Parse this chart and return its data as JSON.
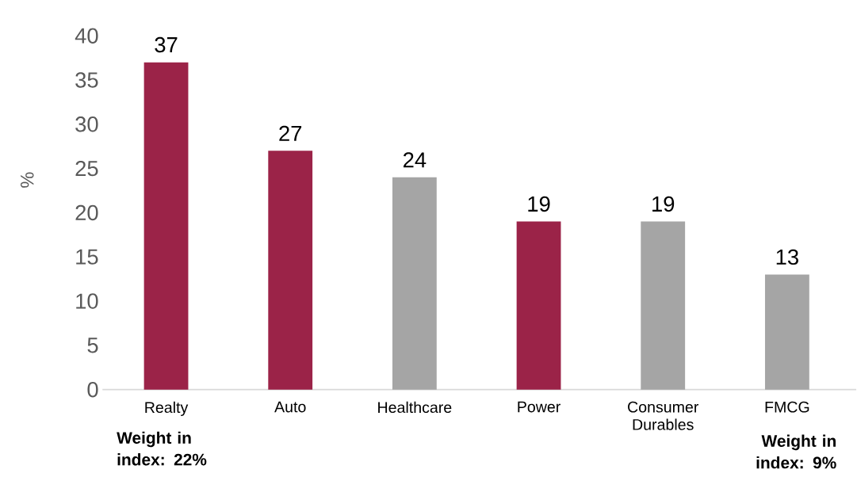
{
  "chart_data": {
    "type": "bar",
    "ylabel": "%",
    "categories": [
      "Realty",
      "Auto",
      "Healthcare",
      "Power",
      "Consumer Durables",
      "FMCG"
    ],
    "values": [
      37,
      27,
      24,
      19,
      19,
      13
    ],
    "colors": [
      "#9b2348",
      "#9b2348",
      "#a5a5a5",
      "#9b2348",
      "#a5a5a5",
      "#a5a5a5"
    ],
    "ylim": [
      0,
      40
    ],
    "yticks": [
      0,
      5,
      10,
      15,
      20,
      25,
      30,
      35,
      40
    ],
    "data_labels": true,
    "annotations": [
      "Weight in index: 22%",
      "Weight in index: 9%"
    ]
  }
}
